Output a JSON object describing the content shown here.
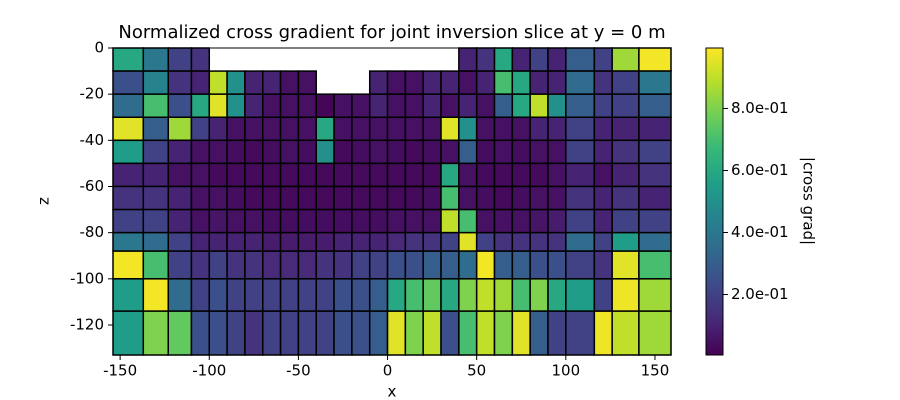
{
  "chart_data": {
    "type": "heatmap",
    "title": "Normalized cross gradient for joint inversion slice at y = 0 m",
    "x_label": "x",
    "y_label": "z",
    "colorbar_label": "|cross grad|",
    "colormap": "viridis",
    "x_edges": [
      -154,
      -137,
      -123,
      -110,
      -100,
      -90,
      -80,
      -70,
      -60,
      -50,
      -40,
      -30,
      -20,
      -10,
      0,
      10,
      20,
      30,
      40,
      50,
      60,
      70,
      80,
      90,
      100,
      116,
      126,
      141,
      159
    ],
    "z_edges": [
      0,
      -10,
      -20,
      -30,
      -40,
      -50,
      -60,
      -70,
      -80,
      -88,
      -100,
      -114,
      -133
    ],
    "values": [
      [
        0.6,
        0.4,
        0.2,
        0.15,
        null,
        null,
        null,
        null,
        null,
        null,
        null,
        null,
        null,
        null,
        null,
        null,
        null,
        null,
        0.1,
        0.15,
        0.6,
        0.1,
        0.2,
        0.1,
        0.3,
        0.2,
        0.85,
        0.98
      ],
      [
        0.25,
        0.45,
        0.15,
        0.1,
        0.9,
        0.5,
        0.1,
        0.1,
        0.05,
        0.05,
        null,
        null,
        null,
        0.1,
        0.05,
        0.05,
        0.1,
        0.1,
        0.05,
        0.1,
        0.7,
        0.6,
        0.1,
        0.1,
        0.35,
        0.15,
        0.2,
        0.4
      ],
      [
        0.35,
        0.7,
        0.25,
        0.6,
        0.95,
        0.5,
        0.1,
        0.05,
        0.05,
        0.05,
        0.02,
        0.05,
        0.05,
        0.1,
        0.05,
        0.05,
        0.1,
        0.05,
        0.1,
        0.05,
        0.3,
        0.6,
        0.9,
        0.5,
        0.3,
        0.2,
        0.2,
        0.3
      ],
      [
        0.95,
        0.3,
        0.85,
        0.2,
        0.1,
        0.05,
        0.05,
        0.05,
        0.05,
        0.05,
        0.6,
        0.05,
        0.05,
        0.05,
        0.05,
        0.05,
        0.05,
        0.95,
        0.5,
        0.05,
        0.05,
        0.05,
        0.1,
        0.1,
        0.2,
        0.1,
        0.1,
        0.1
      ],
      [
        0.55,
        0.2,
        0.1,
        0.05,
        0.05,
        0.04,
        0.03,
        0.04,
        0.05,
        0.04,
        0.5,
        0.03,
        0.04,
        0.05,
        0.04,
        0.03,
        0.04,
        0.05,
        0.3,
        0.04,
        0.05,
        0.04,
        0.05,
        0.05,
        0.2,
        0.1,
        0.15,
        0.2
      ],
      [
        0.1,
        0.1,
        0.05,
        0.05,
        0.03,
        0.03,
        0.03,
        0.03,
        0.03,
        0.03,
        0.03,
        0.03,
        0.03,
        0.03,
        0.03,
        0.03,
        0.03,
        0.6,
        0.05,
        0.03,
        0.03,
        0.03,
        0.03,
        0.05,
        0.1,
        0.05,
        0.1,
        0.15
      ],
      [
        0.15,
        0.15,
        0.1,
        0.05,
        0.05,
        0.04,
        0.03,
        0.03,
        0.03,
        0.03,
        0.03,
        0.03,
        0.03,
        0.03,
        0.03,
        0.03,
        0.04,
        0.7,
        0.05,
        0.04,
        0.03,
        0.04,
        0.05,
        0.05,
        0.15,
        0.1,
        0.15,
        0.1
      ],
      [
        0.2,
        0.2,
        0.1,
        0.05,
        0.06,
        0.05,
        0.05,
        0.04,
        0.04,
        0.04,
        0.04,
        0.04,
        0.04,
        0.04,
        0.05,
        0.05,
        0.05,
        0.9,
        0.7,
        0.05,
        0.05,
        0.05,
        0.06,
        0.08,
        0.2,
        0.1,
        0.2,
        0.2
      ],
      [
        0.4,
        0.35,
        0.2,
        0.1,
        0.1,
        0.1,
        0.1,
        0.08,
        0.08,
        0.08,
        0.08,
        0.1,
        0.1,
        0.1,
        0.12,
        0.15,
        0.15,
        0.2,
        0.95,
        0.2,
        0.15,
        0.15,
        0.15,
        0.15,
        0.35,
        0.2,
        0.55,
        0.35
      ],
      [
        0.98,
        0.7,
        0.2,
        0.15,
        0.2,
        0.15,
        0.15,
        0.12,
        0.12,
        0.12,
        0.15,
        0.15,
        0.2,
        0.2,
        0.25,
        0.25,
        0.3,
        0.3,
        0.35,
        0.98,
        0.3,
        0.3,
        0.25,
        0.25,
        0.2,
        0.15,
        0.95,
        0.7
      ],
      [
        0.55,
        0.98,
        0.35,
        0.2,
        0.25,
        0.2,
        0.2,
        0.2,
        0.2,
        0.2,
        0.2,
        0.25,
        0.25,
        0.3,
        0.6,
        0.7,
        0.75,
        0.6,
        0.8,
        0.9,
        0.85,
        0.7,
        0.8,
        0.6,
        0.55,
        0.2,
        0.97,
        0.85
      ],
      [
        0.55,
        0.8,
        0.75,
        0.25,
        0.25,
        0.2,
        0.15,
        0.2,
        0.2,
        0.2,
        0.2,
        0.25,
        0.25,
        0.3,
        0.95,
        0.8,
        0.9,
        0.25,
        0.7,
        0.9,
        0.8,
        0.95,
        0.3,
        0.2,
        0.2,
        0.97,
        0.9,
        0.85
      ]
    ],
    "xlim": [
      -154,
      159
    ],
    "ylim": [
      -133,
      0
    ],
    "xticks": [
      -150,
      -100,
      -50,
      0,
      50,
      100,
      150
    ],
    "yticks": [
      0,
      -20,
      -40,
      -60,
      -80,
      -100,
      -120
    ],
    "clim": [
      0.005,
      0.995
    ],
    "cticks": [
      {
        "value": 0.2,
        "label": "2.0e-01"
      },
      {
        "value": 0.4,
        "label": "4.0e-01"
      },
      {
        "value": 0.6,
        "label": "6.0e-01"
      },
      {
        "value": 0.8,
        "label": "8.0e-01"
      }
    ]
  }
}
